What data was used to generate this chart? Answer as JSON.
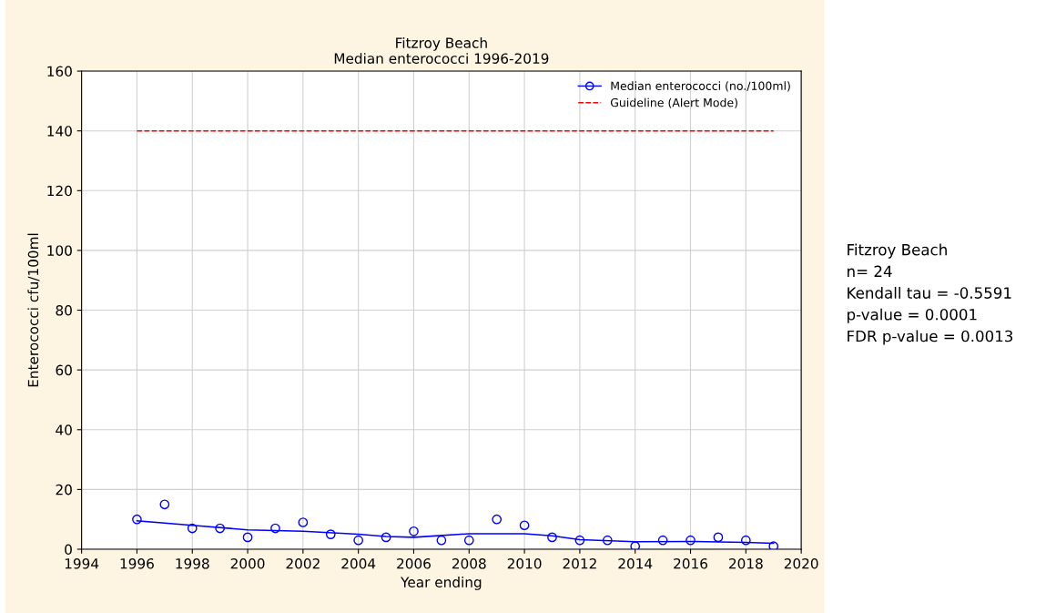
{
  "chart_data": {
    "type": "scatter",
    "title": "Fitzroy Beach",
    "subtitle": "Median enterococci 1996-2019",
    "xlabel": "Year ending",
    "ylabel": "Enterococci cfu/100ml",
    "series": [
      {
        "name": "Median enterococci (no./100ml)",
        "color": "#0000ff",
        "marker": "circle",
        "x": [
          1996,
          1997,
          1998,
          1999,
          2000,
          2001,
          2002,
          2003,
          2004,
          2005,
          2006,
          2007,
          2008,
          2009,
          2010,
          2011,
          2012,
          2013,
          2014,
          2015,
          2016,
          2017,
          2018,
          2019
        ],
        "values": [
          10,
          15,
          7,
          7,
          4,
          7,
          9,
          5,
          3,
          4,
          6,
          3,
          3,
          10,
          8,
          4,
          3,
          3,
          1,
          3,
          3,
          4,
          3,
          1
        ]
      },
      {
        "type": "line",
        "color": "#0000ff",
        "line_style": "solid",
        "x": [
          1996,
          1998,
          2000,
          2002,
          2004,
          2005,
          2006,
          2008,
          2010,
          2011,
          2012,
          2014,
          2016,
          2018,
          2019
        ],
        "values": [
          9.5,
          8,
          6.5,
          6,
          5,
          4.3,
          4,
          5.2,
          5.2,
          4.5,
          3.2,
          2.5,
          2.6,
          2.3,
          2
        ]
      },
      {
        "type": "line",
        "name": "Guideline (Alert Mode)",
        "color": "#ff0000",
        "line_style": "dashed",
        "x": [
          1996,
          2019
        ],
        "values": [
          140,
          140
        ]
      }
    ],
    "xlim": [
      1994,
      2020
    ],
    "xticks": [
      1994,
      1996,
      1998,
      2000,
      2002,
      2004,
      2006,
      2008,
      2010,
      2012,
      2014,
      2016,
      2018,
      2020
    ],
    "ylim": [
      0,
      160
    ],
    "yticks": [
      0,
      20,
      40,
      60,
      80,
      100,
      120,
      140,
      160
    ],
    "grid": true,
    "legend": "top right",
    "annotations": [
      "Fitzroy Beach",
      "n= 24",
      "Kendall tau = -0.5591",
      "p-value = 0.0001",
      "FDR p-value = 0.0013"
    ]
  }
}
